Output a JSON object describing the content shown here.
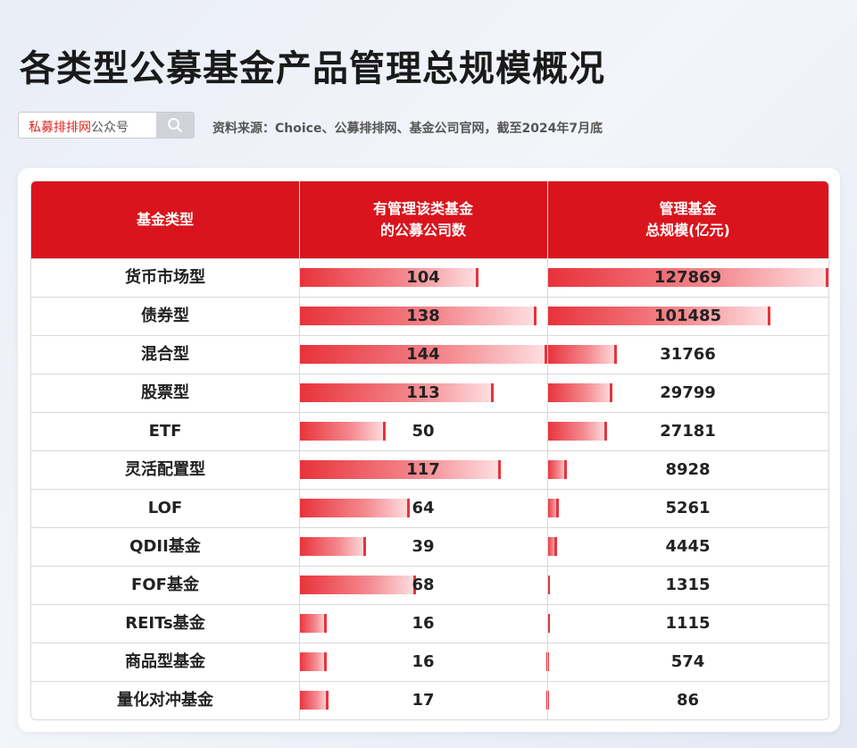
{
  "title": "各类型公募基金产品管理总规模概况",
  "search": {
    "brand": "私募排排网",
    "suffix": "公众号",
    "icon": "search-icon"
  },
  "source": "资料来源：Choice、公募排排网、基金公司官网，截至2024年7月底",
  "colors": {
    "header": "#d9141c",
    "bar": "#e8323a",
    "accent_text": "#e0261f"
  },
  "chart_data": {
    "type": "table",
    "columns": [
      "基金类型",
      "有管理该类基金\n的公募公司数",
      "管理基金\n总规模(亿元)"
    ],
    "rows": [
      {
        "type": "货币市场型",
        "companies": 104,
        "scale": 127869
      },
      {
        "type": "债券型",
        "companies": 138,
        "scale": 101485
      },
      {
        "type": "混合型",
        "companies": 144,
        "scale": 31766
      },
      {
        "type": "股票型",
        "companies": 113,
        "scale": 29799
      },
      {
        "type": "ETF",
        "companies": 50,
        "scale": 27181
      },
      {
        "type": "灵活配置型",
        "companies": 117,
        "scale": 8928
      },
      {
        "type": "LOF",
        "companies": 64,
        "scale": 5261
      },
      {
        "type": "QDII基金",
        "companies": 39,
        "scale": 4445
      },
      {
        "type": "FOF基金",
        "companies": 68,
        "scale": 1315
      },
      {
        "type": "REITs基金",
        "companies": 16,
        "scale": 1115
      },
      {
        "type": "商品型基金",
        "companies": 16,
        "scale": 574
      },
      {
        "type": "量化对冲基金",
        "companies": 17,
        "scale": 86
      }
    ],
    "companies_max": 144,
    "scale_max": 127869
  }
}
